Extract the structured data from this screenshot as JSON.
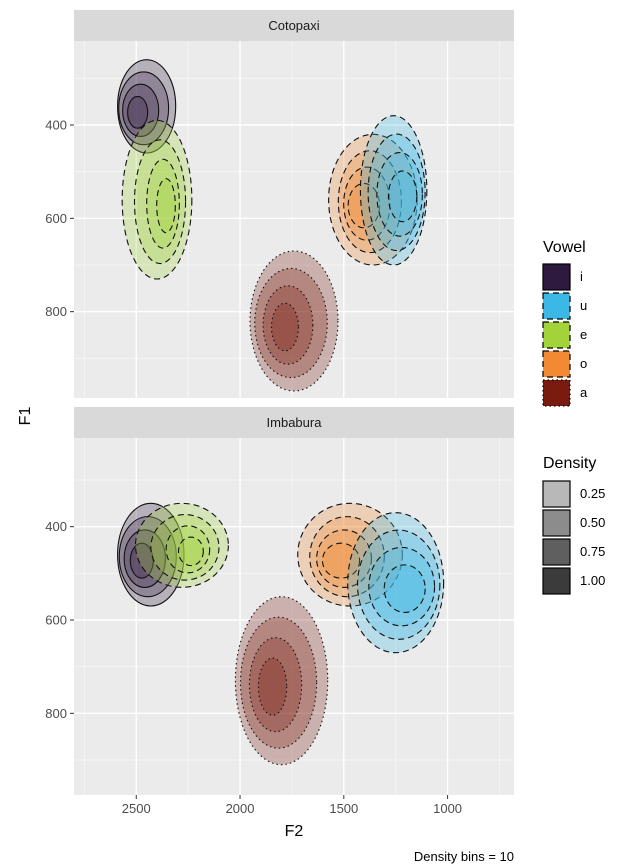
{
  "chart_data": {
    "type": "density-contour",
    "xlabel": "F2",
    "ylabel": "F1",
    "caption": "Density bins = 10",
    "x_reversed": true,
    "y_reversed": true,
    "xlim": [
      2800,
      680
    ],
    "x_ticks": [
      2500,
      2000,
      1500,
      1000
    ],
    "y_ticks": [
      400,
      600,
      800
    ],
    "panels": [
      {
        "name": "Cotopaxi",
        "ylim": [
          220,
          985
        ],
        "groups": [
          {
            "vowel": "i",
            "center": [
              2450,
              360
            ],
            "radius": [
              140,
              100
            ]
          },
          {
            "vowel": "e",
            "center": [
              2400,
              560
            ],
            "radius": [
              150,
              170
            ]
          },
          {
            "vowel": "o",
            "center": [
              1360,
              560
            ],
            "radius": [
              220,
              140
            ]
          },
          {
            "vowel": "u",
            "center": [
              1260,
              540
            ],
            "radius": [
              180,
              160
            ]
          },
          {
            "vowel": "a",
            "center": [
              1740,
              820
            ],
            "radius": [
              200,
              150
            ]
          }
        ]
      },
      {
        "name": "Imbabura",
        "ylim": [
          210,
          975
        ],
        "groups": [
          {
            "vowel": "i",
            "center": [
              2430,
              460
            ],
            "radius": [
              160,
              110
            ]
          },
          {
            "vowel": "e",
            "center": [
              2280,
              440
            ],
            "radius": [
              200,
              90
            ]
          },
          {
            "vowel": "o",
            "center": [
              1470,
              460
            ],
            "radius": [
              260,
              110
            ]
          },
          {
            "vowel": "u",
            "center": [
              1250,
              520
            ],
            "radius": [
              260,
              150
            ]
          },
          {
            "vowel": "a",
            "center": [
              1800,
              730
            ],
            "radius": [
              210,
              180
            ]
          }
        ]
      }
    ],
    "legend_vowel": {
      "title": "Vowel",
      "entries": [
        {
          "label": "i",
          "color": "#2d1a3e",
          "linetype": "solid"
        },
        {
          "label": "u",
          "color": "#3bb8e6",
          "linetype": "dashed"
        },
        {
          "label": "e",
          "color": "#a2d43a",
          "linetype": "dashed"
        },
        {
          "label": "o",
          "color": "#f28a33",
          "linetype": "dashed"
        },
        {
          "label": "a",
          "color": "#7a1b10",
          "linetype": "dotted"
        }
      ]
    },
    "legend_density": {
      "title": "Density",
      "entries": [
        {
          "label": "0.25",
          "color": "#b8b8b8"
        },
        {
          "label": "0.50",
          "color": "#8c8c8c"
        },
        {
          "label": "0.75",
          "color": "#5f5f5f"
        },
        {
          "label": "1.00",
          "color": "#3b3b3b"
        }
      ]
    },
    "legend_position": "right"
  }
}
